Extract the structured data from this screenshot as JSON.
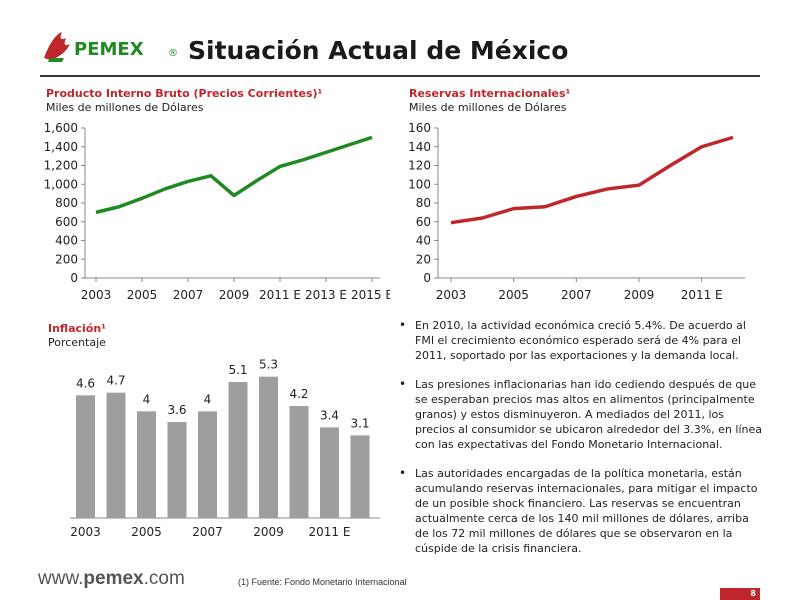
{
  "header": {
    "logo_text": "PEMEX",
    "logo_reg": "®",
    "title": "Situación Actual de México"
  },
  "colors": {
    "brand_red": "#c0272d",
    "gdp_line": "#1f8a1f",
    "reserves_line": "#c0272d",
    "bar_fill": "#9e9e9e"
  },
  "gdp_chart": {
    "title": "Producto Interno Bruto (Precios Corrientes)¹",
    "subtitle": "Miles de millones de Dólares",
    "chart_data": {
      "type": "line",
      "x": [
        2003,
        2004,
        2005,
        2006,
        2007,
        2008,
        2009,
        2010,
        2011,
        2012,
        2013,
        2014,
        2015
      ],
      "values": [
        700,
        760,
        850,
        950,
        1030,
        1090,
        880,
        1040,
        1190,
        1260,
        1340,
        1420,
        1500
      ],
      "xtick_labels": [
        "2003",
        "2005",
        "2007",
        "2009",
        "2011 E",
        "2013 E",
        "2015 E"
      ],
      "ytick_labels": [
        "0",
        "200",
        "400",
        "600",
        "800",
        "1,000",
        "1,200",
        "1,400",
        "1,600"
      ],
      "ylim": [
        0,
        1600
      ],
      "grid": false
    }
  },
  "reserves_chart": {
    "title": "Reservas Internacionales¹",
    "subtitle": "Miles de millones de Dólares",
    "chart_data": {
      "type": "line",
      "x": [
        2003,
        2004,
        2005,
        2006,
        2007,
        2008,
        2009,
        2010,
        2011,
        2012
      ],
      "values": [
        59,
        64,
        74,
        76,
        87,
        95,
        99,
        120,
        140,
        150
      ],
      "xtick_labels": [
        "2003",
        "2005",
        "2007",
        "2009",
        "2011 E"
      ],
      "ytick_labels": [
        "0",
        "20",
        "40",
        "60",
        "80",
        "100",
        "120",
        "140",
        "160"
      ],
      "ylim": [
        0,
        160
      ],
      "grid": false
    }
  },
  "inflation_chart": {
    "title": "Inflación¹",
    "subtitle": "Porcentaje",
    "chart_data": {
      "type": "bar",
      "categories": [
        "2003",
        "2004",
        "2005",
        "2006",
        "2007",
        "2008",
        "2009",
        "2010",
        "2011 E",
        "2012 E"
      ],
      "values": [
        4.6,
        4.7,
        4.0,
        3.6,
        4.0,
        5.1,
        5.3,
        4.2,
        3.4,
        3.1
      ],
      "value_labels": [
        "4.6",
        "4.7",
        "4",
        "3.6",
        "4",
        "5.1",
        "5.3",
        "4.2",
        "3.4",
        "3.1"
      ],
      "xtick_labels": [
        "2003",
        "2005",
        "2007",
        "2009",
        "2011 E"
      ],
      "ylim": [
        0,
        6
      ]
    }
  },
  "bullets": [
    "En 2010, la actividad económica creció 5.4%. De acuerdo al FMI el crecimiento económico esperado será de 4% para el 2011, soportado por las exportaciones y la demanda local.",
    "Las presiones inflacionarias han ido cediendo después de que se esperaban precios mas altos en alimentos (principalmente granos) y estos disminuyeron. A mediados del 2011, los precios al consumidor se ubicaron alrededor del 3.3%, en línea con las expectativas del Fondo Monetario Internacional.",
    "Las autoridades encargadas de la política monetaria, están acumulando reservas internacionales, para mitigar el impacto de un posible shock financiero. Las reservas se encuentran actualmente cerca de los 140 mil millones de dólares, arriba de los 72 mil millones de dólares que se observaron en la cúspide de la crisis financiera."
  ],
  "footer": {
    "url_prefix": "www.",
    "url_brand": "pemex",
    "url_suffix": ".com",
    "source": "(1) Fuente: Fondo Monetario Internacional",
    "page_number": "8"
  }
}
